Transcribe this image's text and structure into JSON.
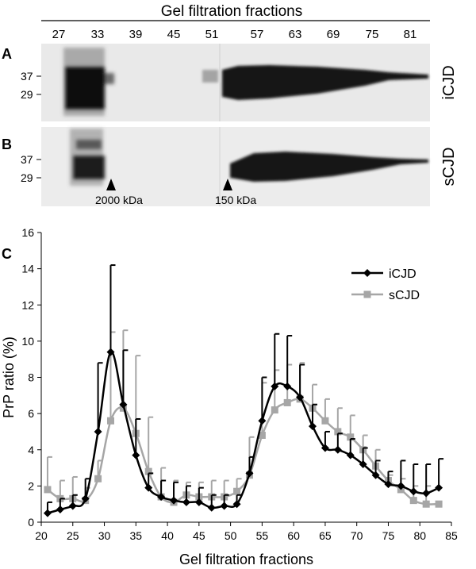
{
  "figure": {
    "top_header": "Gel filtration fractions",
    "lane_labels": [
      "27",
      "33",
      "39",
      "45",
      "51",
      "57",
      "63",
      "69",
      "75",
      "81"
    ],
    "panel_a": {
      "letter": "A",
      "sample": "iCJD",
      "mw_markers": [
        "37",
        "29"
      ]
    },
    "panel_b": {
      "letter": "B",
      "sample": "sCJD",
      "mw_markers": [
        "37",
        "29"
      ],
      "arrow_labels": [
        "2000 kDa",
        "150 kDa"
      ]
    },
    "panel_c": {
      "letter": "C"
    }
  },
  "chart_data": {
    "type": "line",
    "xlabel": "Gel filtration fractions",
    "ylabel": "PrP ratio (%)",
    "xlim": [
      20,
      85
    ],
    "ylim": [
      0,
      16
    ],
    "xticks": [
      20,
      25,
      30,
      35,
      40,
      45,
      50,
      55,
      60,
      65,
      70,
      75,
      80,
      85
    ],
    "yticks": [
      0,
      2,
      4,
      6,
      8,
      10,
      12,
      14,
      16
    ],
    "grid": false,
    "legend": "top-right",
    "x": [
      21,
      23,
      25,
      27,
      29,
      31,
      33,
      35,
      37,
      39,
      41,
      43,
      45,
      47,
      49,
      51,
      53,
      55,
      57,
      59,
      61,
      63,
      65,
      67,
      69,
      71,
      73,
      75,
      77,
      79,
      81,
      83
    ],
    "series": [
      {
        "name": "iCJD",
        "color": "#000000",
        "marker": "diamond",
        "values": [
          0.5,
          0.7,
          0.9,
          1.3,
          5.0,
          9.4,
          6.5,
          3.7,
          1.9,
          1.4,
          1.2,
          1.1,
          1.1,
          0.8,
          0.9,
          1.0,
          2.7,
          5.6,
          7.5,
          7.5,
          6.9,
          5.3,
          4.1,
          4.0,
          3.7,
          3.2,
          2.6,
          2.1,
          2.0,
          1.7,
          1.6,
          1.9
        ],
        "error_plus": [
          0.6,
          0.6,
          0.6,
          1.1,
          3.8,
          4.8,
          3.0,
          2.0,
          0.8,
          0.9,
          1.0,
          0.9,
          0.8,
          0.7,
          0.6,
          0.5,
          0.9,
          2.4,
          2.9,
          2.8,
          1.8,
          1.2,
          0.9,
          0.9,
          0.9,
          0.9,
          0.8,
          0.7,
          1.4,
          1.5,
          1.6,
          1.6
        ]
      },
      {
        "name": "sCJD",
        "color": "#a6a6a6",
        "marker": "square",
        "values": [
          1.8,
          1.3,
          1.3,
          1.2,
          2.4,
          5.6,
          6.3,
          4.9,
          2.8,
          1.4,
          1.1,
          1.5,
          1.4,
          1.4,
          1.4,
          1.7,
          2.6,
          4.8,
          6.2,
          6.6,
          6.8,
          6.3,
          5.6,
          5.0,
          4.7,
          4.0,
          3.1,
          2.3,
          1.8,
          1.2,
          1.0,
          1.0
        ],
        "error_plus": [
          1.8,
          1.0,
          1.2,
          0.7,
          1.0,
          4.9,
          4.3,
          4.3,
          3.0,
          1.6,
          1.2,
          0.7,
          0.8,
          0.9,
          0.9,
          0.7,
          2.1,
          2.9,
          2.2,
          2.1,
          2.0,
          1.3,
          1.2,
          1.3,
          1.2,
          0.8,
          0.9,
          0.3,
          0.6,
          0.8,
          1.0,
          0.0
        ]
      }
    ]
  }
}
